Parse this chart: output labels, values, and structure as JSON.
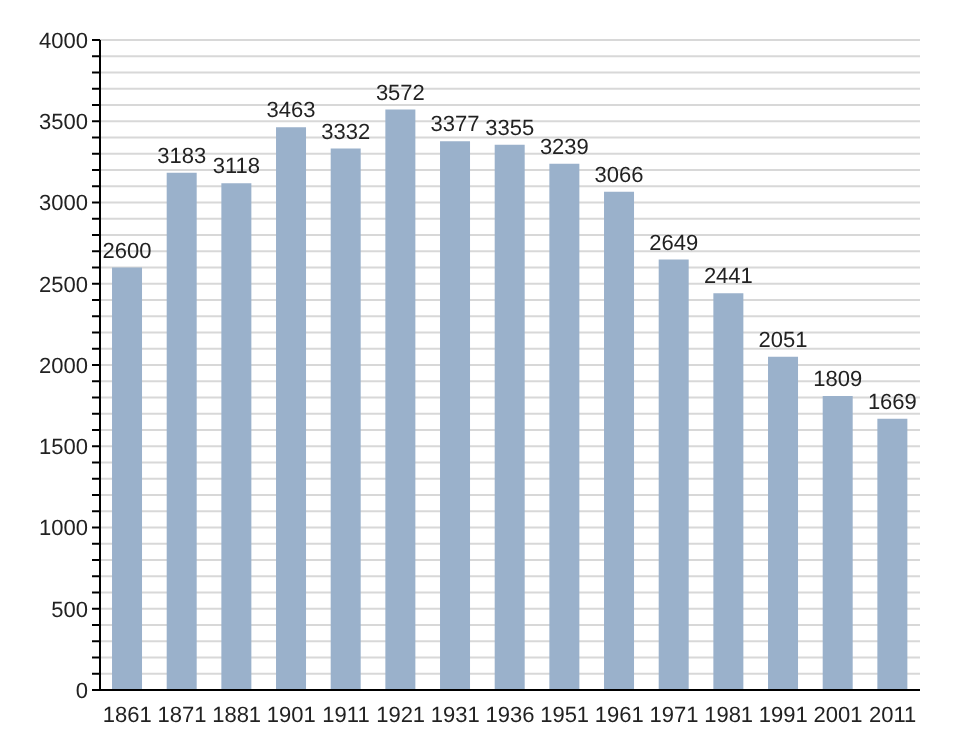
{
  "chart_data": {
    "type": "bar",
    "categories": [
      "1861",
      "1871",
      "1881",
      "1901",
      "1911",
      "1921",
      "1931",
      "1936",
      "1951",
      "1961",
      "1971",
      "1981",
      "1991",
      "2001",
      "2011"
    ],
    "values": [
      2600,
      3183,
      3118,
      3463,
      3332,
      3572,
      3377,
      3355,
      3239,
      3066,
      2649,
      2441,
      2051,
      1809,
      1669
    ],
    "color": "#9ab1cb",
    "ylim": [
      0,
      4000
    ],
    "yticks": [
      0,
      {
        "value": 100,
        "label": null
      },
      {
        "value": 200,
        "label": null
      },
      {
        "value": 300,
        "label": null
      },
      {
        "value": 400,
        "label": null
      },
      500,
      {
        "value": 600,
        "label": null
      },
      {
        "value": 700,
        "label": null
      },
      {
        "value": 800,
        "label": null
      },
      {
        "value": 900,
        "label": null
      },
      1000,
      {
        "value": 1100,
        "label": null
      },
      {
        "value": 1200,
        "label": null
      },
      {
        "value": 1300,
        "label": null
      },
      {
        "value": 1400,
        "label": null
      },
      1500,
      {
        "value": 1600,
        "label": null
      },
      {
        "value": 1700,
        "label": null
      },
      {
        "value": 1800,
        "label": null
      },
      {
        "value": 1900,
        "label": null
      },
      2000,
      {
        "value": 2100,
        "label": null
      },
      {
        "value": 2200,
        "label": null
      },
      {
        "value": 2300,
        "label": null
      },
      {
        "value": 2400,
        "label": null
      },
      2500,
      {
        "value": 2600,
        "label": null
      },
      {
        "value": 2700,
        "label": null
      },
      {
        "value": 2800,
        "label": null
      },
      {
        "value": 2900,
        "label": null
      },
      3000,
      {
        "value": 3100,
        "label": null
      },
      {
        "value": 3200,
        "label": null
      },
      {
        "value": 3300,
        "label": null
      },
      {
        "value": 3400,
        "label": null
      },
      3500,
      {
        "value": 3600,
        "label": null
      },
      {
        "value": 3700,
        "label": null
      },
      {
        "value": 3800,
        "label": null
      },
      {
        "value": 3900,
        "label": null
      },
      4000
    ],
    "grid": "y",
    "data_labels": true
  }
}
